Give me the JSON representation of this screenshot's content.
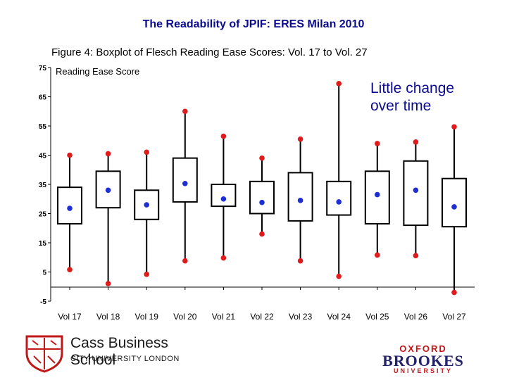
{
  "header": {
    "slide_title": "The Readability of JPIF: ERES Milan 2010",
    "figure_title": "Figure 4: Boxplot of Flesch Reading Ease Scores: Vol. 17 to Vol. 27"
  },
  "annotation": {
    "line1": "Little change",
    "line2": "over time"
  },
  "colors": {
    "median": "#1f2fd6",
    "whisker_end": "#e01b1b",
    "box": "#000000",
    "title": "#0b0b8f"
  },
  "chart_data": {
    "type": "boxplot",
    "title": "Figure 4: Boxplot of Flesch Reading Ease Scores: Vol. 17 to Vol. 27",
    "ylabel": "Reading Ease Score",
    "xlabel": "",
    "ylim": [
      -5,
      75
    ],
    "yticks": [
      75,
      65,
      55,
      45,
      35,
      25,
      15,
      5,
      -5
    ],
    "grid": false,
    "categories": [
      "Vol 17",
      "Vol 18",
      "Vol 19",
      "Vol 20",
      "Vol 21",
      "Vol 22",
      "Vol 23",
      "Vol 24",
      "Vol 25",
      "Vol 26",
      "Vol 27"
    ],
    "series": [
      {
        "min": [
          5.8,
          1.0,
          4.2,
          8.8,
          9.8,
          18.0,
          8.8,
          3.5,
          10.8,
          10.6,
          -2.0
        ],
        "q1": [
          21.5,
          27.0,
          23.0,
          29.0,
          27.5,
          25.0,
          22.5,
          24.5,
          21.5,
          21.0,
          20.5
        ],
        "median": [
          26.8,
          33.0,
          28.0,
          35.3,
          30.0,
          28.8,
          29.5,
          29.0,
          31.5,
          33.0,
          27.3
        ],
        "q3": [
          34.0,
          39.5,
          33.0,
          44.0,
          35.0,
          36.0,
          39.0,
          36.0,
          39.5,
          43.0,
          37.0
        ],
        "max": [
          45.0,
          45.5,
          46.0,
          60.0,
          51.5,
          44.0,
          50.5,
          69.5,
          49.0,
          49.5,
          54.7
        ]
      }
    ]
  },
  "logos": {
    "left_name": "Cass Business School",
    "left_sub": "CITY UNIVERSITY LONDON",
    "right_line1": "OXFORD",
    "right_line2": "BROOKES",
    "right_line3": "UNIVERSITY"
  }
}
